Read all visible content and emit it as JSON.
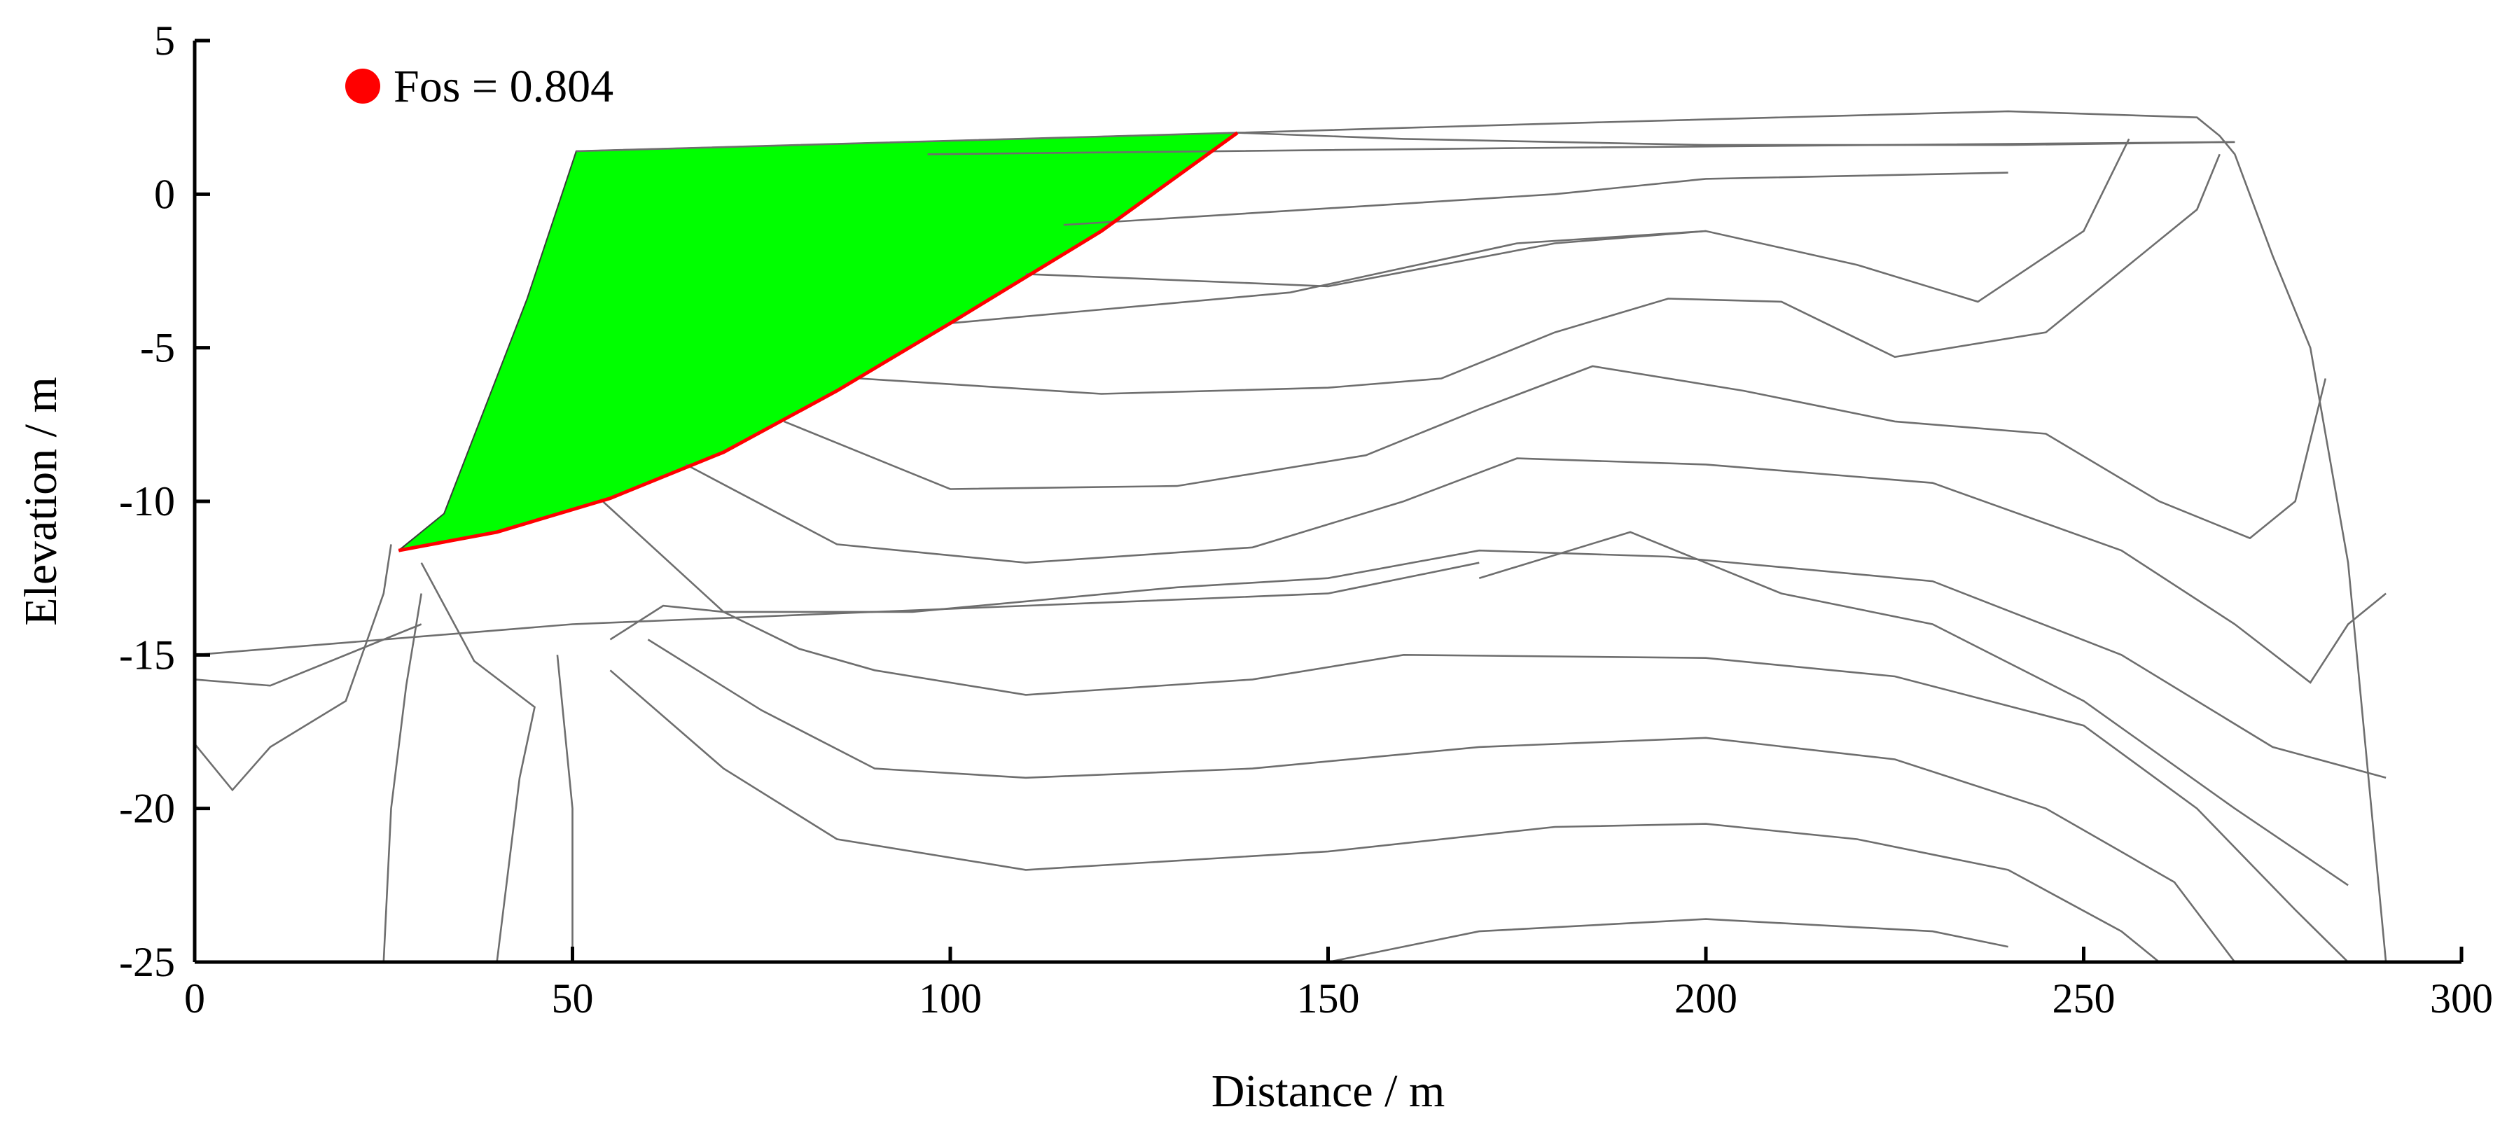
{
  "chart_data": {
    "type": "line",
    "title": "",
    "xlabel": "Distance / m",
    "ylabel": "Elevation / m",
    "xlim": [
      0,
      300
    ],
    "ylim": [
      -25,
      5
    ],
    "xticks": [
      "0",
      "50",
      "100",
      "150",
      "200",
      "250",
      "300"
    ],
    "yticks": [
      "5",
      "0",
      "-5",
      "-10",
      "-15",
      "-20",
      "-25"
    ],
    "grid": false,
    "legend": {
      "placement": "top-left",
      "label": "Fos = 0.804",
      "marker_color": "#ff0000"
    },
    "colors": {
      "sliding_mass": "#00ff00",
      "slip_surface": "#ff0000",
      "contours": "#6e6e6e"
    },
    "sliding_mass": [
      [
        50.5,
        1.4
      ],
      [
        138,
        2
      ],
      [
        120,
        -1.2
      ],
      [
        100,
        -4.2
      ],
      [
        85,
        -6.4
      ],
      [
        70,
        -8.4
      ],
      [
        55,
        -9.9
      ],
      [
        40,
        -11.0
      ],
      [
        27,
        -11.6
      ],
      [
        30,
        -11.0
      ],
      [
        33,
        -10.4
      ],
      [
        44,
        -3.4
      ]
    ],
    "slip_surface": [
      [
        27,
        -11.6
      ],
      [
        40,
        -11.0
      ],
      [
        55,
        -9.9
      ],
      [
        70,
        -8.4
      ],
      [
        85,
        -6.4
      ],
      [
        100,
        -4.2
      ],
      [
        120,
        -1.2
      ],
      [
        138,
        2
      ]
    ],
    "contours": [
      [
        [
          50.5,
          1.4
        ],
        [
          138,
          2
        ],
        [
          180,
          2.3
        ],
        [
          240,
          2.7
        ],
        [
          265,
          2.5
        ],
        [
          268,
          1.9
        ],
        [
          270,
          1.3
        ],
        [
          275,
          -2
        ],
        [
          280,
          -5
        ],
        [
          285,
          -12
        ],
        [
          290,
          -25
        ]
      ],
      [
        [
          138,
          2
        ],
        [
          160,
          1.8
        ],
        [
          200,
          1.6
        ],
        [
          240,
          1.6
        ],
        [
          270,
          1.7
        ]
      ],
      [
        [
          0,
          -15
        ],
        [
          50,
          -14.0
        ],
        [
          100,
          -13.5
        ],
        [
          150,
          -13
        ],
        [
          170,
          -12
        ]
      ],
      [
        [
          97,
          1.3
        ],
        [
          175,
          1.5
        ],
        [
          270,
          1.7
        ]
      ],
      [
        [
          115,
          -1.0
        ],
        [
          180,
          0
        ],
        [
          200,
          0.5
        ],
        [
          240,
          0.7
        ]
      ],
      [
        [
          100,
          -4.2
        ],
        [
          145,
          -3.2
        ],
        [
          175,
          -1.6
        ],
        [
          200,
          -1.2
        ],
        [
          220,
          -2.3
        ],
        [
          236,
          -3.5
        ],
        [
          250,
          -1.2
        ],
        [
          256,
          1.8
        ]
      ],
      [
        [
          110,
          -2.6
        ],
        [
          150,
          -3.0
        ],
        [
          180,
          -1.6
        ],
        [
          200,
          -1.2
        ]
      ],
      [
        [
          88,
          -6.0
        ],
        [
          120,
          -6.5
        ],
        [
          150,
          -6.3
        ],
        [
          165,
          -6.0
        ],
        [
          180,
          -4.5
        ],
        [
          195,
          -3.4
        ],
        [
          210,
          -3.5
        ],
        [
          225,
          -5.3
        ],
        [
          245,
          -4.5
        ],
        [
          265,
          -0.5
        ],
        [
          268,
          1.3
        ]
      ],
      [
        [
          78,
          -7.4
        ],
        [
          100,
          -9.6
        ],
        [
          130,
          -9.5
        ],
        [
          155,
          -8.5
        ],
        [
          170,
          -7.0
        ],
        [
          185,
          -5.6
        ],
        [
          205,
          -6.4
        ],
        [
          225,
          -7.4
        ],
        [
          245,
          -7.8
        ],
        [
          260,
          -10
        ],
        [
          272,
          -11.2
        ],
        [
          278,
          -10
        ],
        [
          282,
          -6
        ]
      ],
      [
        [
          65,
          -8.8
        ],
        [
          85,
          -11.4
        ],
        [
          110,
          -12
        ],
        [
          140,
          -11.5
        ],
        [
          160,
          -10
        ],
        [
          175,
          -8.6
        ],
        [
          200,
          -8.8
        ],
        [
          230,
          -9.4
        ],
        [
          255,
          -11.6
        ],
        [
          270,
          -14
        ],
        [
          280,
          -15.9
        ],
        [
          285,
          -14
        ],
        [
          290,
          -13
        ]
      ],
      [
        [
          54,
          -10.0
        ],
        [
          70,
          -13.6
        ],
        [
          95,
          -13.6
        ],
        [
          130,
          -12.8
        ],
        [
          150,
          -12.5
        ],
        [
          170,
          -11.6
        ],
        [
          195,
          -11.8
        ],
        [
          230,
          -12.6
        ],
        [
          255,
          -15
        ],
        [
          275,
          -18
        ],
        [
          290,
          -19.0
        ]
      ],
      [
        [
          170,
          -12.5
        ],
        [
          190,
          -11.0
        ],
        [
          210,
          -13
        ],
        [
          230,
          -14
        ],
        [
          250,
          -16.5
        ],
        [
          270,
          -20
        ],
        [
          285,
          -22.5
        ]
      ],
      [
        [
          26,
          -11.4
        ],
        [
          25,
          -13.0
        ],
        [
          20,
          -16.5
        ],
        [
          10,
          -18
        ],
        [
          5,
          -19.4
        ],
        [
          0,
          -17.9
        ]
      ],
      [
        [
          0,
          -15.8
        ],
        [
          10,
          -16
        ],
        [
          30,
          -14
        ]
      ],
      [
        [
          30,
          -12
        ],
        [
          37,
          -15.2
        ],
        [
          45,
          -16.7
        ],
        [
          43,
          -19
        ],
        [
          40,
          -25
        ]
      ],
      [
        [
          30,
          -13
        ],
        [
          28,
          -16
        ],
        [
          26,
          -20
        ],
        [
          25,
          -25
        ]
      ],
      [
        [
          55,
          -14.5
        ],
        [
          62,
          -13.4
        ],
        [
          70,
          -13.6
        ],
        [
          80,
          -14.8
        ],
        [
          90,
          -15.5
        ],
        [
          110,
          -16.3
        ],
        [
          140,
          -15.8
        ],
        [
          160,
          -15
        ],
        [
          200,
          -15.1
        ],
        [
          225,
          -15.7
        ],
        [
          250,
          -17.3
        ],
        [
          265,
          -20
        ],
        [
          278,
          -23.3
        ],
        [
          285,
          -25
        ]
      ],
      [
        [
          60,
          -14.5
        ],
        [
          75,
          -16.8
        ],
        [
          90,
          -18.7
        ],
        [
          110,
          -19
        ],
        [
          140,
          -18.7
        ],
        [
          170,
          -18
        ],
        [
          200,
          -17.7
        ],
        [
          225,
          -18.4
        ],
        [
          245,
          -20
        ],
        [
          262,
          -22.4
        ],
        [
          270,
          -25
        ]
      ],
      [
        [
          55,
          -15.5
        ],
        [
          70,
          -18.7
        ],
        [
          85,
          -21
        ],
        [
          110,
          -22
        ],
        [
          150,
          -21.4
        ],
        [
          180,
          -20.6
        ],
        [
          200,
          -20.5
        ],
        [
          220,
          -21
        ],
        [
          240,
          -22
        ],
        [
          255,
          -24
        ],
        [
          260,
          -25
        ]
      ],
      [
        [
          48,
          -15
        ],
        [
          50,
          -20
        ],
        [
          50,
          -25
        ]
      ],
      [
        [
          150,
          -25
        ],
        [
          170,
          -24
        ],
        [
          200,
          -23.6
        ],
        [
          230,
          -24
        ],
        [
          240,
          -24.5
        ]
      ]
    ]
  }
}
